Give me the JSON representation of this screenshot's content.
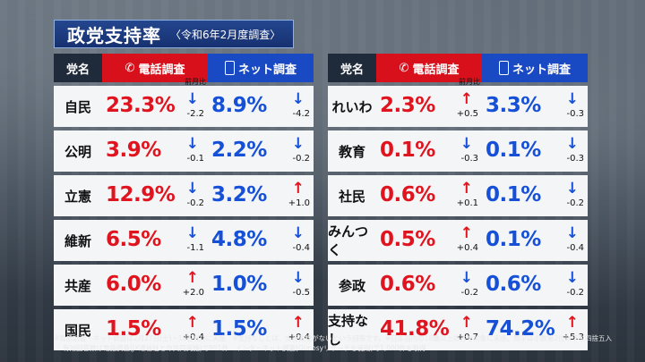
{
  "title": {
    "main": "政党支持率",
    "sub": "〈令和6年2月度調査〉"
  },
  "headers": {
    "party": "党名",
    "phone": "電話調査",
    "net": "ネット調査"
  },
  "prev_label": "前月比",
  "left": [
    {
      "party": "自民",
      "phone": "23.3%",
      "phone_dir": "down",
      "phone_ch": "-2.2",
      "net": "8.9%",
      "net_dir": "down",
      "net_ch": "-4.2"
    },
    {
      "party": "公明",
      "phone": "3.9%",
      "phone_dir": "down",
      "phone_ch": "-0.1",
      "net": "2.2%",
      "net_dir": "down",
      "net_ch": "-0.2"
    },
    {
      "party": "立憲",
      "phone": "12.9%",
      "phone_dir": "down",
      "phone_ch": "-0.2",
      "net": "3.2%",
      "net_dir": "up",
      "net_ch": "+1.0"
    },
    {
      "party": "維新",
      "phone": "6.5%",
      "phone_dir": "down",
      "phone_ch": "-1.1",
      "net": "4.8%",
      "net_dir": "down",
      "net_ch": "-0.4"
    },
    {
      "party": "共産",
      "phone": "6.0%",
      "phone_dir": "up",
      "phone_ch": "+2.0",
      "net": "1.0%",
      "net_dir": "down",
      "net_ch": "-0.5"
    },
    {
      "party": "国民",
      "phone": "1.5%",
      "phone_dir": "up",
      "phone_ch": "+0.4",
      "net": "1.5%",
      "net_dir": "up",
      "net_ch": "+0.4"
    }
  ],
  "right": [
    {
      "party": "れいわ",
      "phone": "2.3%",
      "phone_dir": "up",
      "phone_ch": "+0.5",
      "net": "3.3%",
      "net_dir": "down",
      "net_ch": "-0.3"
    },
    {
      "party": "教育",
      "phone": "0.1%",
      "phone_dir": "down",
      "phone_ch": "-0.3",
      "net": "0.1%",
      "net_dir": "down",
      "net_ch": "-0.3"
    },
    {
      "party": "社民",
      "phone": "0.6%",
      "phone_dir": "up",
      "phone_ch": "+0.1",
      "net": "0.1%",
      "net_dir": "down",
      "net_ch": "-0.2"
    },
    {
      "party": "みんつく",
      "phone": "0.5%",
      "phone_dir": "up",
      "phone_ch": "+0.4",
      "net": "0.1%",
      "net_dir": "down",
      "net_ch": "-0.4"
    },
    {
      "party": "参政",
      "phone": "0.6%",
      "phone_dir": "down",
      "phone_ch": "-0.2",
      "net": "0.6%",
      "net_dir": "down",
      "net_ch": "-0.2"
    },
    {
      "party": "支持なし",
      "phone": "41.8%",
      "phone_dir": "up",
      "phone_ch": "+0.7",
      "net": "74.2%",
      "net_dir": "up",
      "net_ch": "+5.3"
    }
  ],
  "notes": {
    "line1": "※電話調査・ネット調査は2月17日(土)・18日(日)に実施　※支持なしとは、支持政党がないという回答です。※日本国内の18歳以上の方を対象に実施。数字は小数第2位以下を四捨五入",
    "line2": "有効回答数は電話調査(JX通信社との共同実施)で991件　インターネット調査(Gunosyリサーチを使用)で1,000件を取得"
  },
  "colors": {
    "phone_header": "#d7101c",
    "net_header": "#1a49c4",
    "up": "#e0141e",
    "down": "#1650d6",
    "title_bg": "#163170"
  },
  "icons": {
    "phone": "phone-icon",
    "net": "smartphone-icon",
    "up": "arrow-up-icon",
    "down": "arrow-down-icon"
  }
}
